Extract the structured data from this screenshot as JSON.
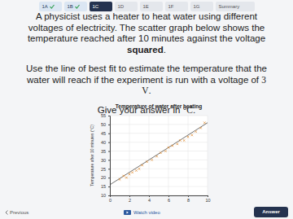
{
  "tabs": [
    {
      "label": "1A",
      "done": true
    },
    {
      "label": "1B",
      "done": true
    },
    {
      "label": "1C",
      "current": true
    },
    {
      "label": "1D"
    },
    {
      "label": "1E"
    },
    {
      "label": "1F"
    },
    {
      "label": "1G"
    },
    {
      "label": "Summary"
    }
  ],
  "question": [
    [
      {
        "text": "A physicist uses a heater to heat water using different voltages of electricity. The scatter graph below shows the temperature reached after 10 minutes against the voltage "
      },
      {
        "text": "squared",
        "bold": true
      },
      {
        "text": "."
      }
    ],
    [
      {
        "text": "Use the line of best fit to estimate the temperature that the water will reach if the experiment is run with a voltage of "
      },
      {
        "text": "3 V",
        "math": true
      },
      {
        "text": "."
      }
    ],
    [
      {
        "text": "Give your answer in "
      },
      {
        "text": "°C",
        "math": true
      },
      {
        "text": "."
      }
    ]
  ],
  "chart_data": {
    "type": "scatter",
    "title": "Temperature of water after heating",
    "y_label": "Temperature after 10 minutes (°C)",
    "x": [
      1.0,
      1.4,
      1.7,
      2.0,
      2.3,
      2.7,
      3.0,
      3.3,
      3.8,
      4.3,
      4.8,
      5.2,
      5.7,
      6.0,
      6.4,
      6.9,
      7.2,
      7.6,
      8.0,
      8.4,
      8.8,
      9.3,
      9.7
    ],
    "values": [
      19,
      21,
      20,
      22,
      23,
      24,
      25,
      27,
      29,
      30,
      32,
      34,
      35,
      37,
      38,
      39,
      41,
      41,
      43,
      44,
      46,
      48,
      51
    ],
    "color": "#e08a2c",
    "marker": "x",
    "line_of_best_fit": {
      "x": [
        0,
        10
      ],
      "values": [
        16,
        51
      ],
      "color": "#333333"
    },
    "xlim": [
      0,
      10
    ],
    "xticks": [
      0,
      2,
      4,
      6,
      8,
      10
    ],
    "ylim": [
      10,
      55
    ],
    "yticks": [
      10,
      15,
      20,
      25,
      30,
      35,
      40,
      45,
      50,
      55
    ],
    "grid": true
  },
  "footer": {
    "previous": "Previous",
    "video": "Watch video",
    "answer": "Answer"
  }
}
